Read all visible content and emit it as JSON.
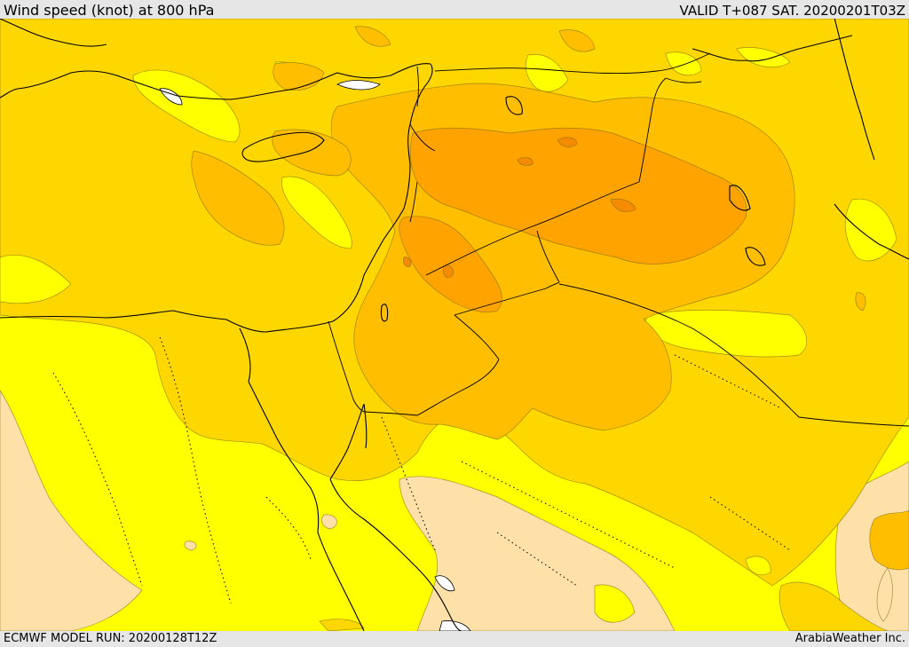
{
  "header": {
    "title": "Wind speed (knot) at 800 hPa",
    "valid": "VALID T+087 SAT. 20200201T03Z"
  },
  "footer": {
    "model_run": "ECMWF MODEL RUN: 20200128T12Z",
    "credit": "ArabiaWeather Inc."
  },
  "legend_colors": {
    "very_low": "#fee1a8",
    "low": "#ffff00",
    "moderate": "#ffd700",
    "fresh": "#ffbf00",
    "strong": "#ffa300",
    "very_strong": "#f58b00",
    "land_lake": "#ffffff"
  }
}
